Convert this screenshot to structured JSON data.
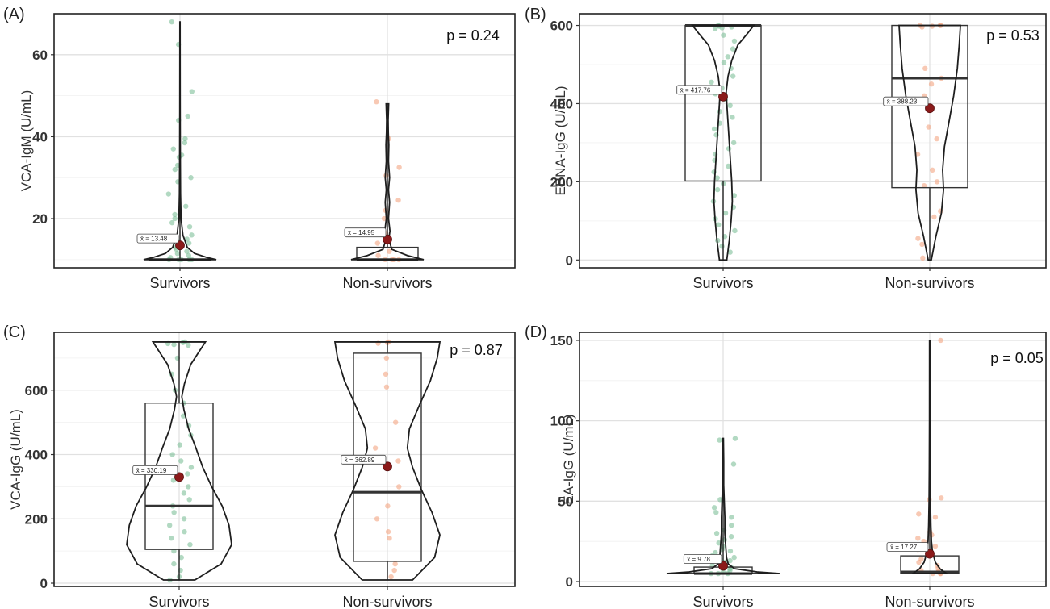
{
  "chart_data": [
    {
      "id": "A",
      "type": "violin",
      "panel_label": "(A)",
      "ylabel": "VCA-IgM (U/mL)",
      "categories": [
        "Survivors",
        "Non-survivors"
      ],
      "yticks": [
        20,
        40,
        60
      ],
      "ylim": [
        8,
        70
      ],
      "grid": true,
      "p_value": "p = 0.24",
      "groups": [
        {
          "name": "Survivors",
          "color": "#7fbf9a",
          "mean": 13.48,
          "mean_label": "x̄ = 13.48",
          "box": {
            "q1": 10,
            "median": 10,
            "q3": 10,
            "whisker_low": 10,
            "whisker_high": 68
          },
          "violin_profile": [
            [
              10,
              1.0
            ],
            [
              10.5,
              0.75
            ],
            [
              11.5,
              0.4
            ],
            [
              13,
              0.2
            ],
            [
              16,
              0.08
            ],
            [
              20,
              0.03
            ],
            [
              26,
              0.015
            ],
            [
              34,
              0.01
            ],
            [
              46,
              0.006
            ],
            [
              68,
              0.003
            ]
          ],
          "points": [
            68,
            62.5,
            51,
            45,
            44,
            39.5,
            38.5,
            37,
            35.5,
            35,
            33,
            32,
            30,
            29,
            26,
            23,
            21,
            20,
            19,
            18,
            16,
            15,
            14.5,
            14,
            13,
            12.5,
            12,
            11.5,
            11,
            10.5,
            10,
            10,
            10,
            10,
            10
          ]
        },
        {
          "name": "Non-survivors",
          "color": "#f4a582",
          "mean": 14.95,
          "mean_label": "x̄ = 14.95",
          "box": {
            "q1": 10,
            "median": 10,
            "q3": 13,
            "whisker_low": 10,
            "whisker_high": 48
          },
          "violin_profile": [
            [
              10,
              1.0
            ],
            [
              11,
              0.55
            ],
            [
              12.5,
              0.12
            ],
            [
              15,
              0.04
            ],
            [
              17,
              0.07
            ],
            [
              20,
              0.03
            ],
            [
              24,
              0.06
            ],
            [
              27,
              0.03
            ],
            [
              30,
              0.06
            ],
            [
              34,
              0.03
            ],
            [
              38,
              0.04
            ],
            [
              41,
              0.025
            ],
            [
              44,
              0.02
            ],
            [
              48,
              0.035
            ]
          ],
          "points": [
            48.5,
            39.5,
            32.5,
            30.5,
            24.5,
            22,
            20,
            16.5,
            15,
            14,
            12,
            11,
            10,
            10,
            10,
            10
          ]
        }
      ]
    },
    {
      "id": "B",
      "type": "violin",
      "panel_label": "(B)",
      "ylabel": "EBNA-IgG (U/mL)",
      "categories": [
        "Survivors",
        "Non-survivors"
      ],
      "yticks": [
        0,
        200,
        400,
        600
      ],
      "ylim": [
        -20,
        630
      ],
      "grid": true,
      "p_value": "p = 0.53",
      "groups": [
        {
          "name": "Survivors",
          "color": "#7fbf9a",
          "mean": 417.76,
          "mean_label": "x̄ = 417.76",
          "box": {
            "q1": 202,
            "median": 600,
            "q3": 600,
            "whisker_low": 0,
            "whisker_high": 600
          },
          "violin_profile": [
            [
              0,
              0.12
            ],
            [
              50,
              0.2
            ],
            [
              100,
              0.26
            ],
            [
              150,
              0.3
            ],
            [
              200,
              0.28
            ],
            [
              250,
              0.24
            ],
            [
              300,
              0.2
            ],
            [
              350,
              0.16
            ],
            [
              400,
              0.12
            ],
            [
              430,
              0.1
            ],
            [
              470,
              0.16
            ],
            [
              510,
              0.28
            ],
            [
              550,
              0.48
            ],
            [
              580,
              0.8
            ],
            [
              600,
              1.0
            ]
          ],
          "points": [
            600,
            598,
            596,
            594,
            592,
            575,
            560,
            540,
            520,
            505,
            490,
            470,
            455,
            440,
            425,
            410,
            395,
            380,
            365,
            350,
            335,
            320,
            300,
            285,
            270,
            255,
            240,
            225,
            210,
            195,
            180,
            165,
            150,
            135,
            120,
            105,
            90,
            75,
            60,
            50,
            35,
            20
          ]
        },
        {
          "name": "Non-survivors",
          "color": "#f4a582",
          "mean": 388.23,
          "mean_label": "x̄ = 388.23",
          "box": {
            "q1": 185,
            "median": 465,
            "q3": 600,
            "whisker_low": 0,
            "whisker_high": 600
          },
          "violin_profile": [
            [
              0,
              0.05
            ],
            [
              60,
              0.2
            ],
            [
              120,
              0.38
            ],
            [
              180,
              0.45
            ],
            [
              230,
              0.42
            ],
            [
              290,
              0.48
            ],
            [
              350,
              0.62
            ],
            [
              420,
              0.78
            ],
            [
              490,
              0.9
            ],
            [
              550,
              0.96
            ],
            [
              600,
              1.0
            ]
          ],
          "points": [
            600,
            600,
            600,
            598,
            596,
            490,
            465,
            450,
            420,
            340,
            310,
            270,
            230,
            200,
            190,
            125,
            110,
            55,
            40,
            5
          ]
        }
      ]
    },
    {
      "id": "C",
      "type": "violin",
      "panel_label": "(C)",
      "ylabel": "VCA-IgG (U/mL)",
      "categories": [
        "Survivors",
        "Non-survivors"
      ],
      "yticks": [
        0,
        200,
        400,
        600
      ],
      "ylim": [
        -10,
        780
      ],
      "grid": true,
      "p_value": "p = 0.87",
      "groups": [
        {
          "name": "Survivors",
          "color": "#7fbf9a",
          "mean": 330.19,
          "mean_label": "x̄ = 330.19",
          "box": {
            "q1": 105,
            "median": 240,
            "q3": 560,
            "whisker_low": 10,
            "whisker_high": 750
          },
          "violin_profile": [
            [
              10,
              0.3
            ],
            [
              60,
              0.8
            ],
            [
              120,
              1.0
            ],
            [
              180,
              0.95
            ],
            [
              240,
              0.82
            ],
            [
              300,
              0.62
            ],
            [
              360,
              0.45
            ],
            [
              420,
              0.32
            ],
            [
              480,
              0.18
            ],
            [
              540,
              0.09
            ],
            [
              580,
              0.05
            ],
            [
              620,
              0.1
            ],
            [
              680,
              0.22
            ],
            [
              720,
              0.38
            ],
            [
              750,
              0.5
            ]
          ],
          "points": [
            750,
            748,
            745,
            742,
            740,
            700,
            650,
            600,
            560,
            520,
            490,
            460,
            430,
            400,
            380,
            360,
            340,
            320,
            300,
            280,
            260,
            240,
            220,
            200,
            180,
            160,
            140,
            120,
            100,
            80,
            60,
            40,
            20,
            10
          ]
        },
        {
          "name": "Non-survivors",
          "color": "#f4a582",
          "mean": 362.89,
          "mean_label": "x̄ = 362.89",
          "box": {
            "q1": 68,
            "median": 283,
            "q3": 715,
            "whisker_low": 10,
            "whisker_high": 750
          },
          "violin_profile": [
            [
              10,
              0.48
            ],
            [
              80,
              0.9
            ],
            [
              150,
              1.0
            ],
            [
              220,
              0.85
            ],
            [
              290,
              0.65
            ],
            [
              360,
              0.48
            ],
            [
              420,
              0.38
            ],
            [
              480,
              0.42
            ],
            [
              550,
              0.6
            ],
            [
              630,
              0.82
            ],
            [
              700,
              0.95
            ],
            [
              750,
              1.0
            ]
          ],
          "points": [
            750,
            748,
            746,
            700,
            650,
            610,
            500,
            420,
            380,
            300,
            240,
            200,
            160,
            140,
            60,
            40,
            20
          ]
        }
      ]
    },
    {
      "id": "D",
      "type": "violin",
      "panel_label": "(D)",
      "ylabel": "EA-IgG (U/mL)",
      "categories": [
        "Survivors",
        "Non-survivors"
      ],
      "yticks": [
        0,
        50,
        100,
        150
      ],
      "ylim": [
        -3,
        155
      ],
      "grid": true,
      "p_value": "p = 0.05",
      "groups": [
        {
          "name": "Survivors",
          "color": "#7fbf9a",
          "mean": 9.78,
          "mean_label": "x̄ = 9.78",
          "box": {
            "q1": 5,
            "median": 5,
            "q3": 9,
            "whisker_low": 5,
            "whisker_high": 89
          },
          "violin_profile": [
            [
              5,
              1.0
            ],
            [
              6,
              0.6
            ],
            [
              8,
              0.2
            ],
            [
              11,
              0.09
            ],
            [
              15,
              0.06
            ],
            [
              20,
              0.05
            ],
            [
              25,
              0.04
            ],
            [
              30,
              0.03
            ],
            [
              40,
              0.03
            ],
            [
              50,
              0.02
            ],
            [
              60,
              0.01
            ],
            [
              75,
              0.01
            ],
            [
              89,
              0.005
            ]
          ],
          "points": [
            89,
            88,
            73,
            51,
            46,
            43,
            40,
            35,
            32,
            30,
            28,
            26,
            24,
            22,
            20,
            19,
            18,
            16,
            15,
            14,
            13,
            12,
            11,
            10,
            9,
            8,
            7,
            6,
            5,
            5,
            5
          ]
        },
        {
          "name": "Non-survivors",
          "color": "#f4a582",
          "mean": 17.27,
          "mean_label": "x̄ = 17.27",
          "box": {
            "q1": 5,
            "median": 6,
            "q3": 16,
            "whisker_low": 5,
            "whisker_high": 150
          },
          "violin_profile": [
            [
              5,
              0.3
            ],
            [
              8,
              0.18
            ],
            [
              12,
              0.1
            ],
            [
              18,
              0.05
            ],
            [
              25,
              0.03
            ],
            [
              35,
              0.02
            ],
            [
              50,
              0.012
            ],
            [
              70,
              0.008
            ],
            [
              100,
              0.005
            ],
            [
              150,
              0.004
            ]
          ],
          "points": [
            150,
            52,
            51,
            42,
            40,
            31,
            29,
            27,
            25,
            22,
            20,
            18,
            16,
            14,
            12,
            10,
            8,
            7,
            6,
            5,
            5,
            5
          ]
        }
      ]
    }
  ]
}
